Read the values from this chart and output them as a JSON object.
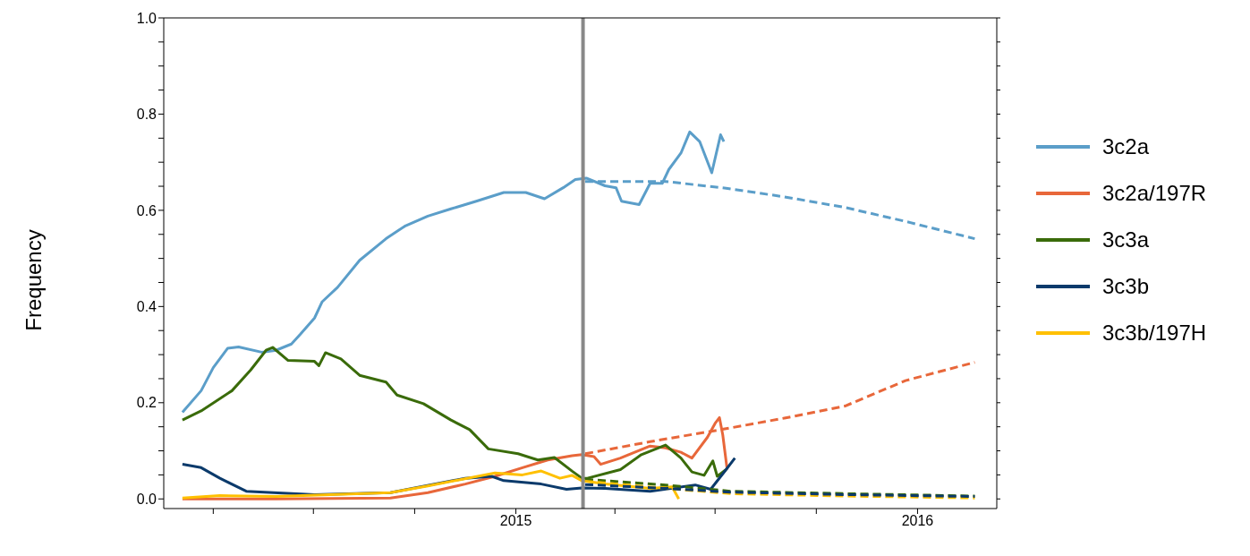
{
  "chart_data": {
    "type": "line",
    "ylabel": "Frequency",
    "legend": "right",
    "line_style": "solid",
    "marker": "none",
    "xlim": [
      "2014-02-15",
      "2016-03-13"
    ],
    "xticks": [
      {
        "value": "2014-04-01",
        "label": null
      },
      {
        "value": "2014-07-01",
        "label": null
      },
      {
        "value": "2014-10-01",
        "label": null
      },
      "2015",
      {
        "value": "2015-04-01",
        "label": null
      },
      {
        "value": "2015-07-01",
        "label": null
      },
      {
        "value": "2015-10-01",
        "label": null
      },
      "2016"
    ],
    "ylim": [
      -0.02,
      1.0
    ],
    "yticks": [
      {
        "value": 0,
        "label": "0.0"
      },
      {
        "value": 0.05,
        "label": null
      },
      {
        "value": 0.1,
        "label": null
      },
      {
        "value": 0.15,
        "label": null
      },
      {
        "value": 0.2,
        "label": "0.2"
      },
      {
        "value": 0.25,
        "label": null
      },
      {
        "value": 0.3,
        "label": null
      },
      {
        "value": 0.35,
        "label": null
      },
      {
        "value": 0.4,
        "label": "0.4"
      },
      {
        "value": 0.45,
        "label": null
      },
      {
        "value": 0.5,
        "label": null
      },
      {
        "value": 0.55,
        "label": null
      },
      {
        "value": 0.6,
        "label": "0.6"
      },
      {
        "value": 0.65,
        "label": null
      },
      {
        "value": 0.7,
        "label": null
      },
      {
        "value": 0.75,
        "label": null
      },
      {
        "value": 0.8,
        "label": "0.8"
      },
      {
        "value": 0.85,
        "label": null
      },
      {
        "value": 0.9,
        "label": null
      },
      {
        "value": 0.95,
        "label": null
      },
      {
        "value": 1.0,
        "label": "1.0"
      }
    ],
    "ref_lines": [
      {
        "axis": "x",
        "value": "2015-03-03",
        "color": "#888888"
      }
    ],
    "series": [
      {
        "name": "3c2a",
        "color": "#5b9ec9",
        "x": [
          "2014-03-04",
          "2014-03-21",
          "2014-04-01",
          "2014-04-14",
          "2014-04-24",
          "2014-05-15",
          "2014-05-28",
          "2014-06-11",
          "2014-06-19",
          "2014-07-02",
          "2014-07-09",
          "2014-07-23",
          "2014-08-12",
          "2014-09-05",
          "2014-09-22",
          "2014-10-13",
          "2014-11-03",
          "2014-11-26",
          "2014-12-21",
          "2015-01-10",
          "2015-01-27",
          "2015-02-13",
          "2015-02-24",
          "2015-03-06",
          "2015-03-23",
          "2015-04-02",
          "2015-04-07",
          "2015-04-23",
          "2015-05-03",
          "2015-05-14",
          "2015-05-20",
          "2015-05-31",
          "2015-06-08",
          "2015-06-17",
          "2015-06-28",
          "2015-07-06",
          "2015-07-09"
        ],
        "values": [
          0.18,
          0.225,
          0.273,
          0.313,
          0.316,
          0.305,
          0.309,
          0.322,
          0.342,
          0.376,
          0.41,
          0.44,
          0.496,
          0.541,
          0.567,
          0.588,
          0.603,
          0.619,
          0.637,
          0.637,
          0.624,
          0.647,
          0.664,
          0.667,
          0.651,
          0.647,
          0.619,
          0.612,
          0.656,
          0.656,
          0.685,
          0.719,
          0.763,
          0.743,
          0.678,
          0.757,
          0.743
        ]
      },
      {
        "name": "3c2a/197R",
        "color": "#e8673a",
        "x": [
          "2014-03-04",
          "2014-05-28",
          "2014-09-09",
          "2014-10-13",
          "2014-11-16",
          "2014-12-13",
          "2015-01-07",
          "2015-01-30",
          "2015-02-21",
          "2015-03-02",
          "2015-03-13",
          "2015-03-19",
          "2015-04-06",
          "2015-05-03",
          "2015-05-17",
          "2015-05-31",
          "2015-06-10",
          "2015-06-24",
          "2015-07-01",
          "2015-07-05",
          "2015-07-08",
          "2015-07-12"
        ],
        "values": [
          0.0,
          0.0,
          0.002,
          0.013,
          0.031,
          0.047,
          0.065,
          0.081,
          0.09,
          0.092,
          0.088,
          0.072,
          0.085,
          0.11,
          0.106,
          0.097,
          0.085,
          0.128,
          0.157,
          0.169,
          0.133,
          0.061
        ]
      },
      {
        "name": "3c3a",
        "color": "#3a6b0a",
        "x": [
          "2014-03-04",
          "2014-03-21",
          "2014-04-18",
          "2014-05-05",
          "2014-05-19",
          "2014-05-25",
          "2014-06-08",
          "2014-07-02",
          "2014-07-06",
          "2014-07-12",
          "2014-07-26",
          "2014-08-12",
          "2014-09-05",
          "2014-09-15",
          "2014-10-09",
          "2014-11-03",
          "2014-11-20",
          "2014-12-07",
          "2015-01-03",
          "2015-01-21",
          "2015-02-05",
          "2015-02-21",
          "2015-03-02",
          "2015-03-07",
          "2015-04-06",
          "2015-04-25",
          "2015-05-17",
          "2015-05-31",
          "2015-06-10",
          "2015-06-21",
          "2015-06-29",
          "2015-07-03",
          "2015-07-11"
        ],
        "values": [
          0.164,
          0.183,
          0.225,
          0.268,
          0.309,
          0.315,
          0.288,
          0.286,
          0.277,
          0.304,
          0.291,
          0.257,
          0.243,
          0.216,
          0.198,
          0.164,
          0.144,
          0.104,
          0.094,
          0.081,
          0.086,
          0.058,
          0.043,
          0.043,
          0.061,
          0.092,
          0.112,
          0.085,
          0.056,
          0.049,
          0.079,
          0.047,
          0.061
        ]
      },
      {
        "name": "3c3b",
        "color": "#0b3a6b",
        "x": [
          "2014-03-04",
          "2014-03-21",
          "2014-04-07",
          "2014-05-01",
          "2014-07-02",
          "2014-09-09",
          "2014-11-16",
          "2014-12-10",
          "2014-12-21",
          "2015-01-24",
          "2015-02-16",
          "2015-03-02",
          "2015-03-23",
          "2015-05-03",
          "2015-06-13",
          "2015-06-27",
          "2015-07-11",
          "2015-07-19"
        ],
        "values": [
          0.072,
          0.065,
          0.043,
          0.016,
          0.009,
          0.013,
          0.043,
          0.047,
          0.038,
          0.031,
          0.02,
          0.023,
          0.022,
          0.016,
          0.029,
          0.02,
          0.061,
          0.085
        ]
      },
      {
        "name": "3c3b/197H",
        "color": "#ffc000",
        "x": [
          "2014-03-04",
          "2014-04-07",
          "2014-05-28",
          "2014-09-09",
          "2014-10-13",
          "2014-12-13",
          "2015-01-07",
          "2015-01-24",
          "2015-02-10",
          "2015-02-21",
          "2015-03-02",
          "2015-03-23",
          "2015-05-03",
          "2015-05-23",
          "2015-05-29"
        ],
        "values": [
          0.002,
          0.007,
          0.005,
          0.013,
          0.027,
          0.054,
          0.05,
          0.058,
          0.043,
          0.049,
          0.038,
          0.031,
          0.022,
          0.025,
          0.0
        ]
      },
      {
        "type": "line",
        "line_style": "dashed",
        "color": "#5b9ec9",
        "x": [
          "2015-03-05",
          "2015-05-17",
          "2015-07-11",
          "2015-09-02",
          "2015-10-27",
          "2015-12-21",
          "2016-02-22"
        ],
        "values": [
          0.66,
          0.66,
          0.646,
          0.628,
          0.606,
          0.577,
          0.541
        ]
      },
      {
        "type": "line",
        "line_style": "dashed",
        "color": "#e8673a",
        "x": [
          "2015-03-05",
          "2015-05-03",
          "2015-07-11",
          "2015-09-02",
          "2015-10-27",
          "2015-12-21",
          "2016-02-22"
        ],
        "values": [
          0.094,
          0.119,
          0.146,
          0.168,
          0.193,
          0.246,
          0.284
        ]
      },
      {
        "type": "line",
        "line_style": "dashed",
        "color": "#3a6b0a",
        "x": [
          "2015-03-05",
          "2015-05-17",
          "2015-07-15",
          "2015-10-27",
          "2016-02-22"
        ],
        "values": [
          0.041,
          0.029,
          0.016,
          0.011,
          0.006
        ]
      },
      {
        "type": "line",
        "line_style": "dashed",
        "color": "#ffc000",
        "x": [
          "2015-03-05",
          "2015-05-17",
          "2015-07-15",
          "2015-10-27",
          "2016-02-22"
        ],
        "values": [
          0.037,
          0.022,
          0.011,
          0.006,
          0.002
        ]
      },
      {
        "type": "line",
        "line_style": "dashed",
        "color": "#0b3a6b",
        "x": [
          "2015-03-05",
          "2015-05-17",
          "2015-07-15",
          "2015-10-27",
          "2016-02-22"
        ],
        "values": [
          0.03,
          0.022,
          0.014,
          0.009,
          0.005
        ]
      }
    ]
  }
}
